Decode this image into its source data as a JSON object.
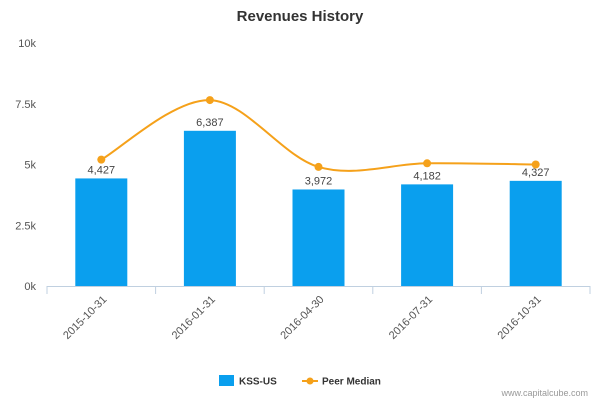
{
  "chart_data": {
    "type": "bar",
    "title": "Revenues History",
    "categories": [
      "2015-10-31",
      "2016-01-31",
      "2016-04-30",
      "2016-07-31",
      "2016-10-31"
    ],
    "series": [
      {
        "name": "KSS-US",
        "type": "bar",
        "color": "#0a9fee",
        "values": [
          4427,
          6387,
          3972,
          4182,
          4327
        ],
        "labels": [
          "4,427",
          "6,387",
          "3,972",
          "4,182",
          "4,327"
        ]
      },
      {
        "name": "Peer Median",
        "type": "line",
        "color": "#f5a11a",
        "values": [
          5200,
          7650,
          4900,
          5050,
          5000
        ]
      }
    ],
    "ylim": [
      0,
      10000
    ],
    "yticks": [
      {
        "value": 0,
        "label": "0k"
      },
      {
        "value": 2500,
        "label": "2.5k"
      },
      {
        "value": 5000,
        "label": "5k"
      },
      {
        "value": 7500,
        "label": "7.5k"
      },
      {
        "value": 10000,
        "label": "10k"
      }
    ],
    "grid": false,
    "legend_position": "bottom-center"
  },
  "credit": "www.capitalcube.com"
}
